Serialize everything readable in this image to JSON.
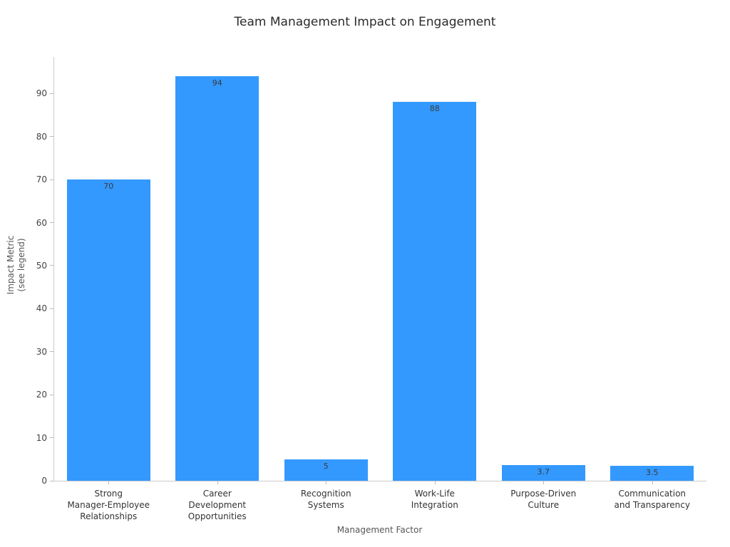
{
  "title": "Team Management Impact on Engagement",
  "chart_data": {
    "type": "bar",
    "title": "Team Management Impact on Engagement",
    "xlabel": "Management Factor",
    "ylabel_lines": [
      "Impact Metric",
      "(see legend)"
    ],
    "categories": [
      [
        "Strong",
        "Manager-Employee",
        "Relationships"
      ],
      [
        "Career",
        "Development",
        "Opportunities"
      ],
      [
        "Recognition",
        "Systems"
      ],
      [
        "Work-Life",
        "Integration"
      ],
      [
        "Purpose-Driven",
        "Culture"
      ],
      [
        "Communication",
        "and Transparency"
      ]
    ],
    "values": [
      70,
      94,
      5,
      88,
      3.7,
      3.5
    ],
    "value_labels": [
      "70",
      "94",
      "5",
      "88",
      "3.7",
      "3.5"
    ],
    "ylim": [
      0,
      98.5
    ],
    "yticks": [
      0,
      10,
      20,
      30,
      40,
      50,
      60,
      70,
      80,
      90
    ],
    "bar_color": "#3399ff",
    "grid": false,
    "legend_position": "none"
  }
}
